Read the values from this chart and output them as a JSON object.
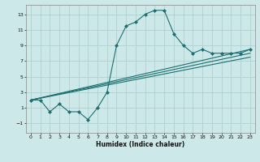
{
  "xlabel": "Humidex (Indice chaleur)",
  "ylabel": "",
  "xlim": [
    -0.5,
    23.5
  ],
  "ylim": [
    -2.2,
    14.2
  ],
  "yticks": [
    -1,
    1,
    3,
    5,
    7,
    9,
    11,
    13
  ],
  "xticks": [
    0,
    1,
    2,
    3,
    4,
    5,
    6,
    7,
    8,
    9,
    10,
    11,
    12,
    13,
    14,
    15,
    16,
    17,
    18,
    19,
    20,
    21,
    22,
    23
  ],
  "background_color": "#cce8e8",
  "grid_color": "#b0d0d0",
  "line_color": "#1a7070",
  "line1_x": [
    0,
    1,
    2,
    3,
    4,
    5,
    6,
    7,
    8,
    9,
    10,
    11,
    12,
    13,
    14,
    15,
    16,
    17,
    18,
    19,
    20,
    21,
    22,
    23
  ],
  "line1_y": [
    2.0,
    2.0,
    0.5,
    1.5,
    0.5,
    0.5,
    -0.5,
    1.0,
    3.0,
    9.0,
    11.5,
    12.0,
    13.0,
    13.5,
    13.5,
    10.5,
    9.0,
    8.0,
    8.5,
    8.0,
    8.0,
    8.0,
    8.0,
    8.5
  ],
  "line2_x": [
    0,
    23
  ],
  "line2_y": [
    2.0,
    8.0
  ],
  "line3_x": [
    0,
    23
  ],
  "line3_y": [
    2.0,
    8.5
  ],
  "line4_x": [
    0,
    23
  ],
  "line4_y": [
    2.0,
    7.5
  ],
  "marker": "D",
  "markersize": 2.0,
  "linewidth": 0.8
}
